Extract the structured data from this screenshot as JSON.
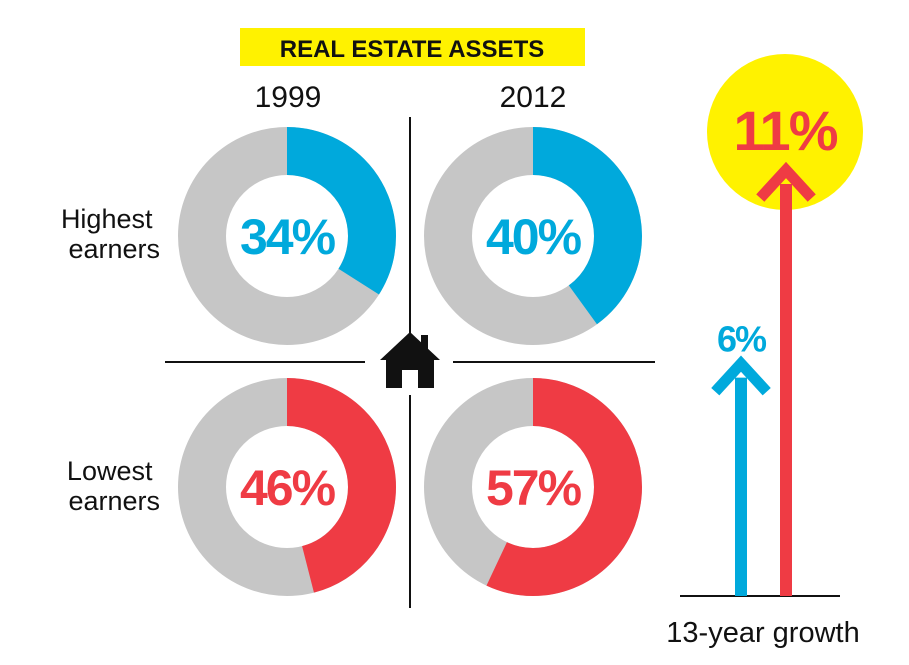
{
  "chart_data": {
    "type": "donut",
    "title": "REAL ESTATE ASSETS",
    "years": [
      "1999",
      "2012"
    ],
    "groups": [
      {
        "label_lines": [
          "Highest",
          "earners"
        ],
        "values": [
          34,
          40
        ],
        "display": [
          "34%",
          "40%"
        ],
        "color": "#00a9dc"
      },
      {
        "label_lines": [
          "Lowest",
          "earners"
        ],
        "values": [
          46,
          57
        ],
        "display": [
          "46%",
          "57%"
        ],
        "color": "#ef3b44"
      }
    ],
    "remainder_color": "#c6c6c6",
    "growth": {
      "label": "13-year growth",
      "items": [
        {
          "value": 6,
          "display": "6%",
          "color": "#00a9dc"
        },
        {
          "value": 11,
          "display": "11%",
          "color": "#ef3b44"
        }
      ],
      "highlight_color": "#fff200"
    },
    "highlight_color": "#fff200",
    "icon": "house-icon"
  }
}
